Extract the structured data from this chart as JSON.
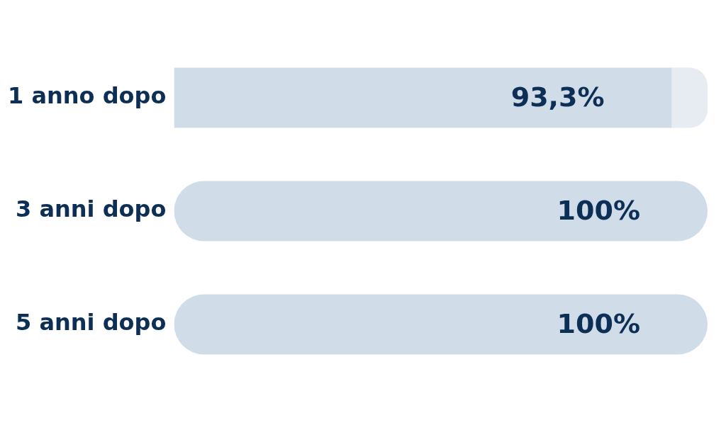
{
  "chart_data": {
    "type": "bar",
    "orientation": "horizontal",
    "stacked": true,
    "categories": [
      "1 anno dopo",
      "3 anni dopo",
      "5 anni dopo"
    ],
    "series": [
      {
        "color": "#d0dde9",
        "values": [
          93.3,
          100,
          100
        ],
        "value_labels": [
          "93,3%",
          "100%",
          "100%"
        ]
      },
      {
        "color": "#e6ecf2",
        "values": [
          6.7,
          0,
          0
        ]
      }
    ],
    "xlim": [
      0,
      100
    ],
    "tick_labels": "y",
    "legend": false
  }
}
